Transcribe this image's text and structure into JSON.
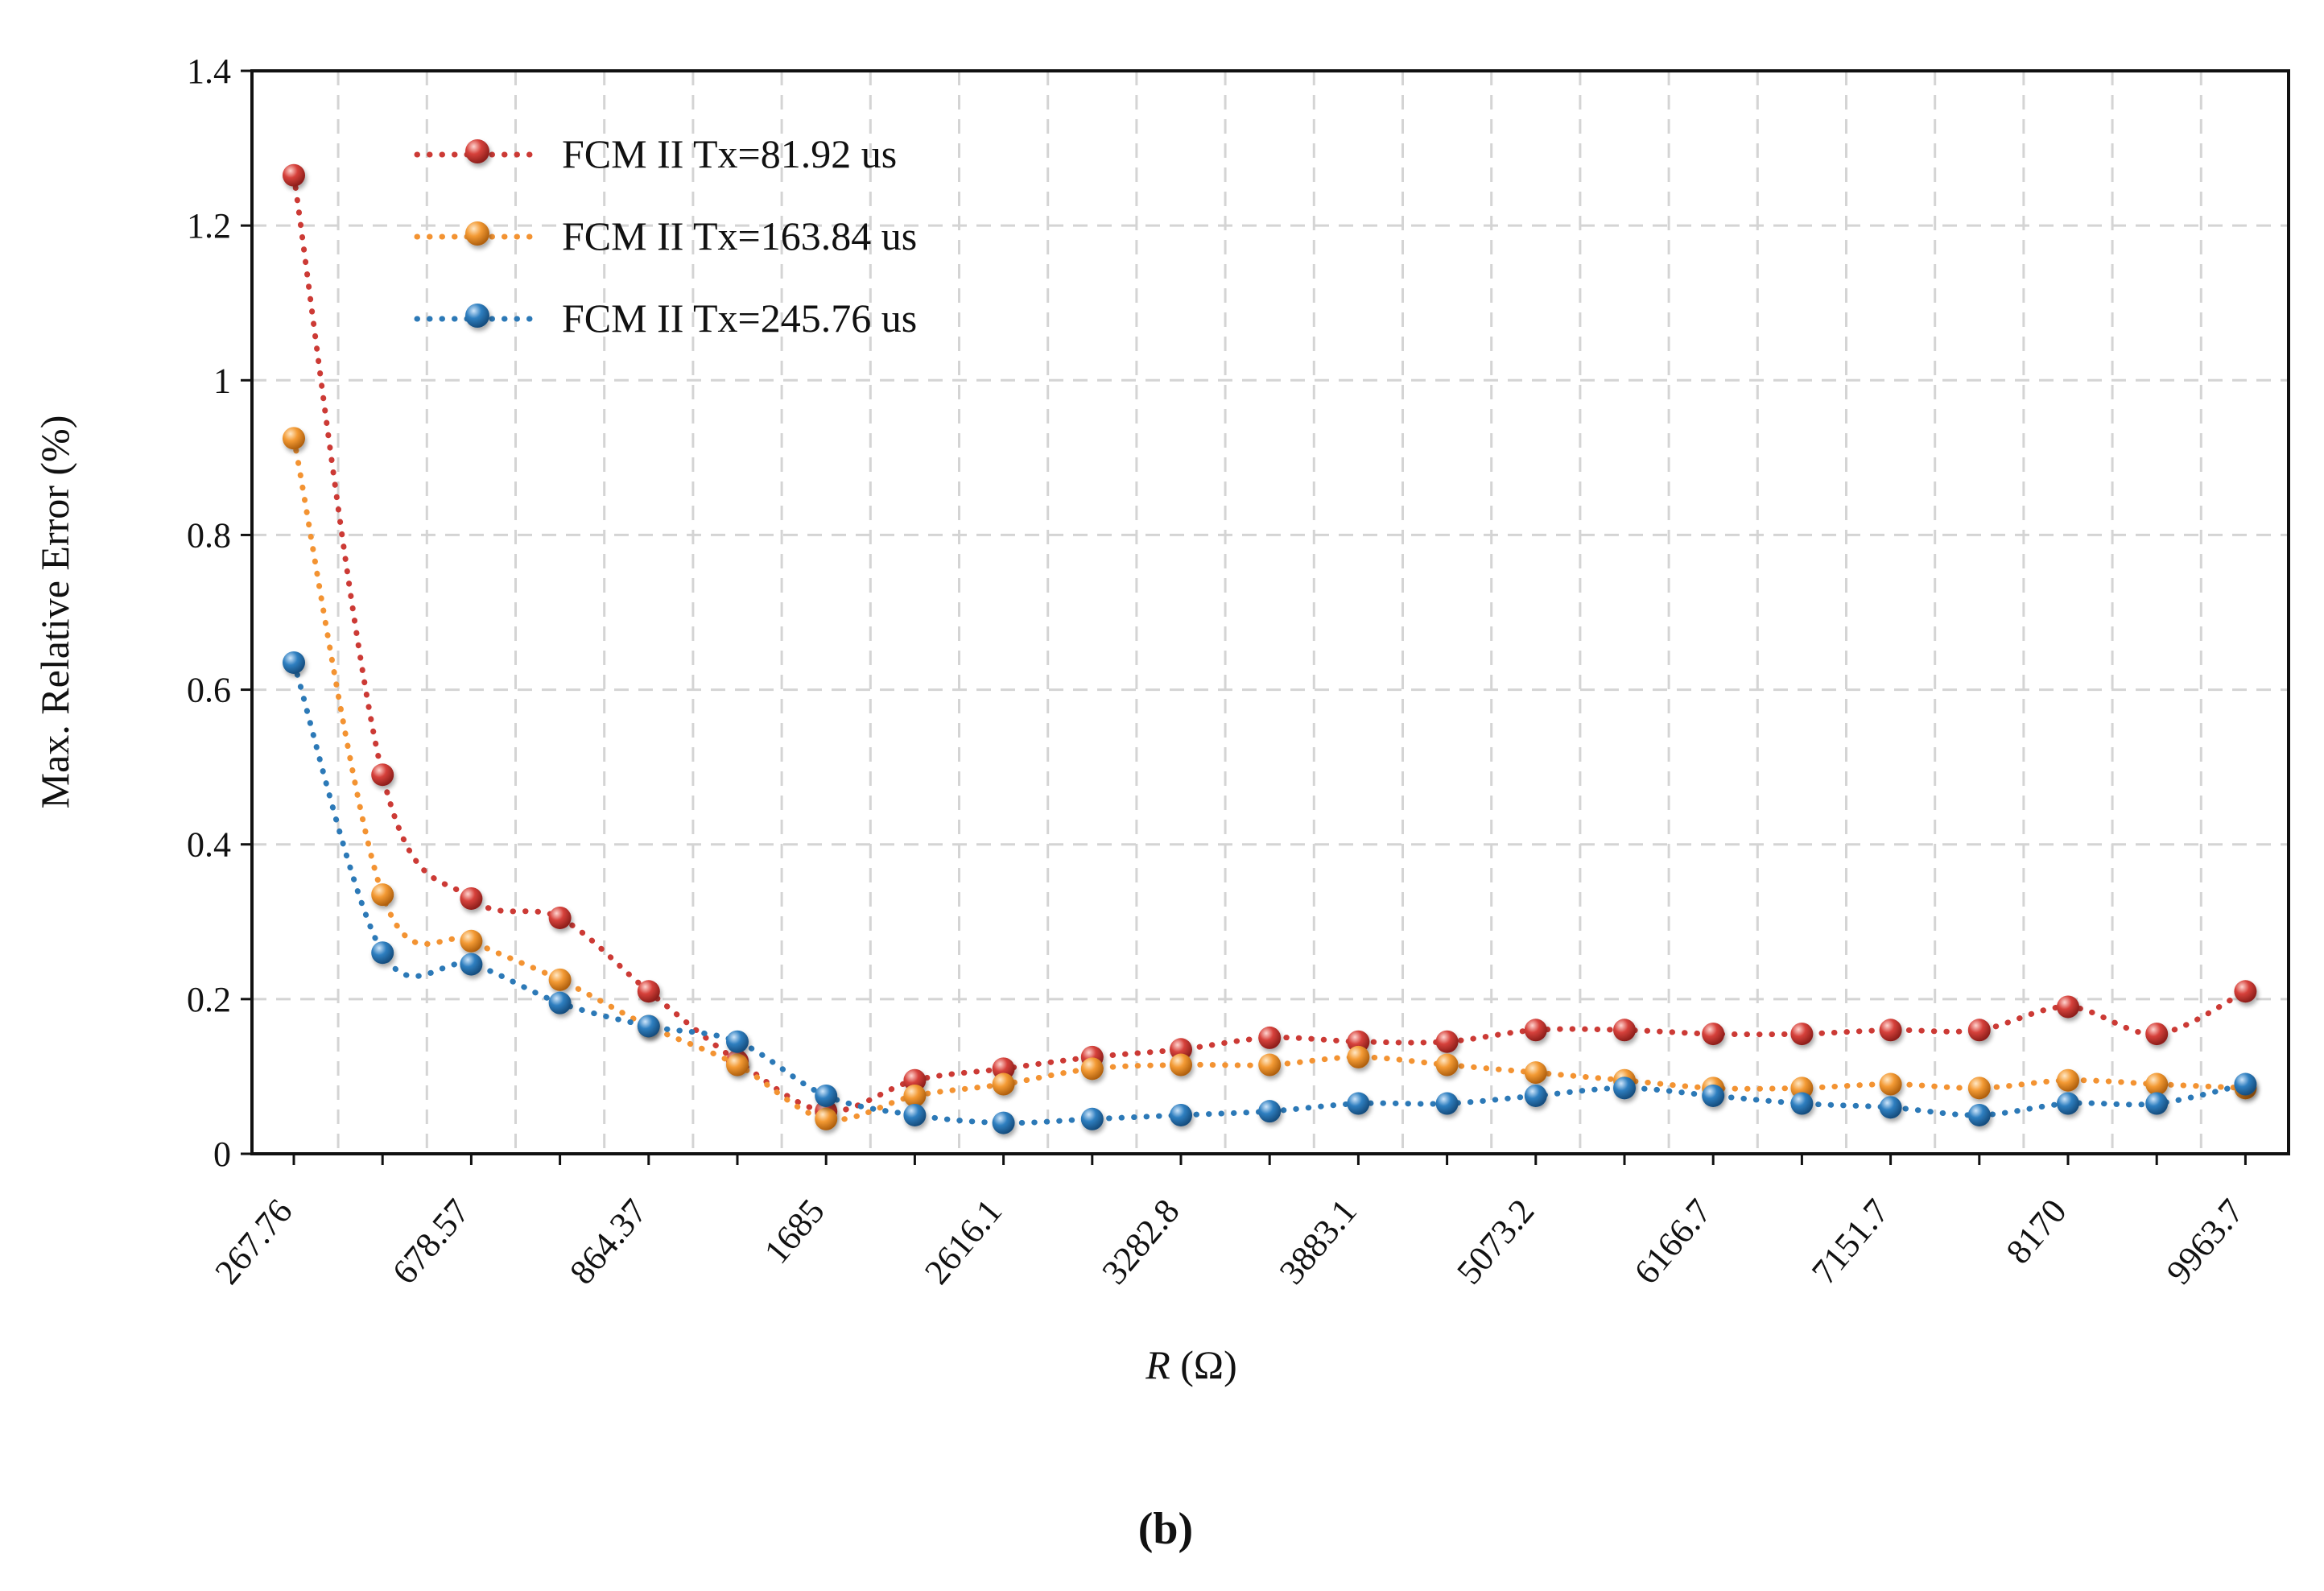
{
  "chart_data": {
    "type": "line",
    "title": "",
    "xlabel_var": "R",
    "xlabel_unit": "(Ω)",
    "ylabel": "Max. Relative Error (%)",
    "panel_label": "(b)",
    "ylim": [
      0,
      1.4
    ],
    "yticks": [
      "0",
      "0.2",
      "0.4",
      "0.6",
      "0.8",
      "1",
      "1.2",
      "1.4"
    ],
    "grid": true,
    "legend_position": "top-left",
    "n_points": 23,
    "x_tick_labels": [
      "267.76",
      "678.57",
      "864.37",
      "1685",
      "2616.1",
      "3282.8",
      "3883.1",
      "5073.2",
      "6166.7",
      "7151.7",
      "8170",
      "9963.7"
    ],
    "series": [
      {
        "name": "FCM II Tx=81.92 us",
        "color": "#cc3a35",
        "values": [
          1.265,
          0.49,
          0.33,
          0.305,
          0.21,
          0.12,
          0.055,
          0.095,
          0.11,
          0.125,
          0.135,
          0.15,
          0.145,
          0.145,
          0.16,
          0.16,
          0.155,
          0.155,
          0.16,
          0.16,
          0.19,
          0.155,
          0.21
        ]
      },
      {
        "name": "FCM II Tx=163.84 us",
        "color": "#f39332",
        "values": [
          0.925,
          0.335,
          0.275,
          0.225,
          0.165,
          0.115,
          0.045,
          0.075,
          0.09,
          0.11,
          0.115,
          0.115,
          0.125,
          0.115,
          0.105,
          0.095,
          0.085,
          0.085,
          0.09,
          0.085,
          0.095,
          0.09,
          0.085
        ]
      },
      {
        "name": "FCM II Tx=245.76 us",
        "color": "#2c79b7",
        "values": [
          0.635,
          0.26,
          0.245,
          0.195,
          0.165,
          0.145,
          0.075,
          0.05,
          0.04,
          0.045,
          0.05,
          0.055,
          0.065,
          0.065,
          0.075,
          0.085,
          0.075,
          0.065,
          0.06,
          0.05,
          0.065,
          0.065,
          0.09
        ]
      }
    ]
  }
}
